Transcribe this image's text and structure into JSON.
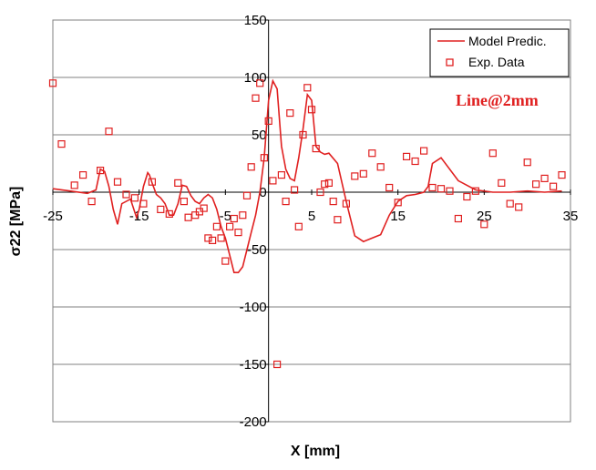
{
  "chart_data": {
    "type": "scatter",
    "title": "",
    "xlabel": "X [mm]",
    "ylabel": "σ22 [MPa]",
    "xlim": [
      -25,
      35
    ],
    "ylim": [
      -200,
      150
    ],
    "x_ticks": [
      -25,
      -15,
      -5,
      5,
      15,
      25,
      35
    ],
    "y_ticks": [
      -200,
      -150,
      -100,
      -50,
      0,
      50,
      100,
      150
    ],
    "x_tick_labels": [
      "-25",
      "-15",
      "-5",
      "5",
      "15",
      "25",
      "35"
    ],
    "y_tick_labels": [
      "-200",
      "-150",
      "-100",
      "-50",
      "0",
      "50",
      "100",
      "150"
    ],
    "grid": "horizontal",
    "legend_position": "top-right",
    "annotation": "Line@2mm",
    "accent_color": "#e02020",
    "series": [
      {
        "name": "Model Predic.",
        "kind": "line",
        "x": [
          -25,
          -23,
          -21,
          -20,
          -19.5,
          -19,
          -18.5,
          -18,
          -17.5,
          -17,
          -16,
          -15.3,
          -15,
          -14.5,
          -14,
          -13.8,
          -13.5,
          -13,
          -12.5,
          -12,
          -11.5,
          -11,
          -10.5,
          -10,
          -9.5,
          -9,
          -8.5,
          -8,
          -7.5,
          -7,
          -6.5,
          -6,
          -5.5,
          -5,
          -4.5,
          -4,
          -3.5,
          -3,
          -2.5,
          -2,
          -1.5,
          -1,
          -0.5,
          0,
          0.5,
          1,
          1.5,
          2,
          2.5,
          3,
          3.5,
          4,
          4.5,
          5,
          5.5,
          6,
          6.5,
          7,
          8,
          9,
          10,
          11,
          12,
          13,
          14,
          15,
          16,
          17,
          17.5,
          18,
          18.5,
          19,
          20,
          22,
          24,
          26,
          28,
          30,
          32,
          34
        ],
        "y": [
          3,
          1,
          -1,
          2,
          20,
          18,
          5,
          -15,
          -28,
          -10,
          -6,
          -22,
          -15,
          5,
          17,
          15,
          8,
          -2,
          -5,
          -10,
          -20,
          -20,
          -10,
          6,
          5,
          -3,
          -8,
          -10,
          -5,
          -2,
          -5,
          -15,
          -30,
          -40,
          -55,
          -70,
          -70,
          -65,
          -50,
          -35,
          -20,
          0,
          30,
          80,
          97,
          90,
          40,
          20,
          12,
          10,
          30,
          55,
          85,
          80,
          40,
          35,
          33,
          34,
          25,
          -8,
          -38,
          -43,
          -40,
          -37,
          -20,
          -8,
          -3,
          -2,
          -1,
          0,
          5,
          25,
          30,
          10,
          2,
          0,
          0,
          1,
          0,
          1
        ]
      },
      {
        "name": "Exp. Data",
        "kind": "scatter",
        "x": [
          -25,
          -24,
          -22.5,
          -21.5,
          -20.5,
          -19.5,
          -18.5,
          -17.5,
          -16.5,
          -15.5,
          -14.5,
          -13.5,
          -12.5,
          -11.5,
          -10.5,
          -9.8,
          -9.3,
          -8.5,
          -8,
          -7.5,
          -7,
          -6.5,
          -6,
          -5.5,
          -5,
          -4.5,
          -4,
          -3.5,
          -3,
          -2.5,
          -2,
          -1.5,
          -1,
          -0.5,
          0,
          0.5,
          1,
          1.5,
          2,
          2.5,
          3,
          3.5,
          4,
          4.5,
          5,
          5.5,
          6,
          6.5,
          7,
          7.5,
          8,
          9,
          10,
          11,
          12,
          13,
          14,
          15,
          16,
          17,
          18,
          19,
          20,
          21,
          22,
          23,
          24,
          25,
          26,
          27,
          28,
          29,
          30,
          31,
          32,
          33,
          34
        ],
        "y": [
          95,
          42,
          6,
          15,
          -8,
          19,
          53,
          9,
          -2,
          -5,
          -10,
          9,
          -15,
          -19,
          8,
          -8,
          -22,
          -20,
          -17,
          -14,
          -40,
          -42,
          -30,
          -40,
          -60,
          -30,
          -23,
          -35,
          -20,
          -3,
          22,
          82,
          95,
          30,
          62,
          10,
          -150,
          15,
          -8,
          69,
          2,
          -30,
          50,
          91,
          72,
          38,
          0,
          7,
          8,
          -8,
          -24,
          -10,
          14,
          16,
          34,
          22,
          4,
          -9,
          31,
          27,
          36,
          4,
          3,
          1,
          -23,
          -4,
          1,
          -28,
          34,
          8,
          -10,
          -13,
          26,
          7,
          12,
          5,
          15
        ]
      }
    ]
  }
}
